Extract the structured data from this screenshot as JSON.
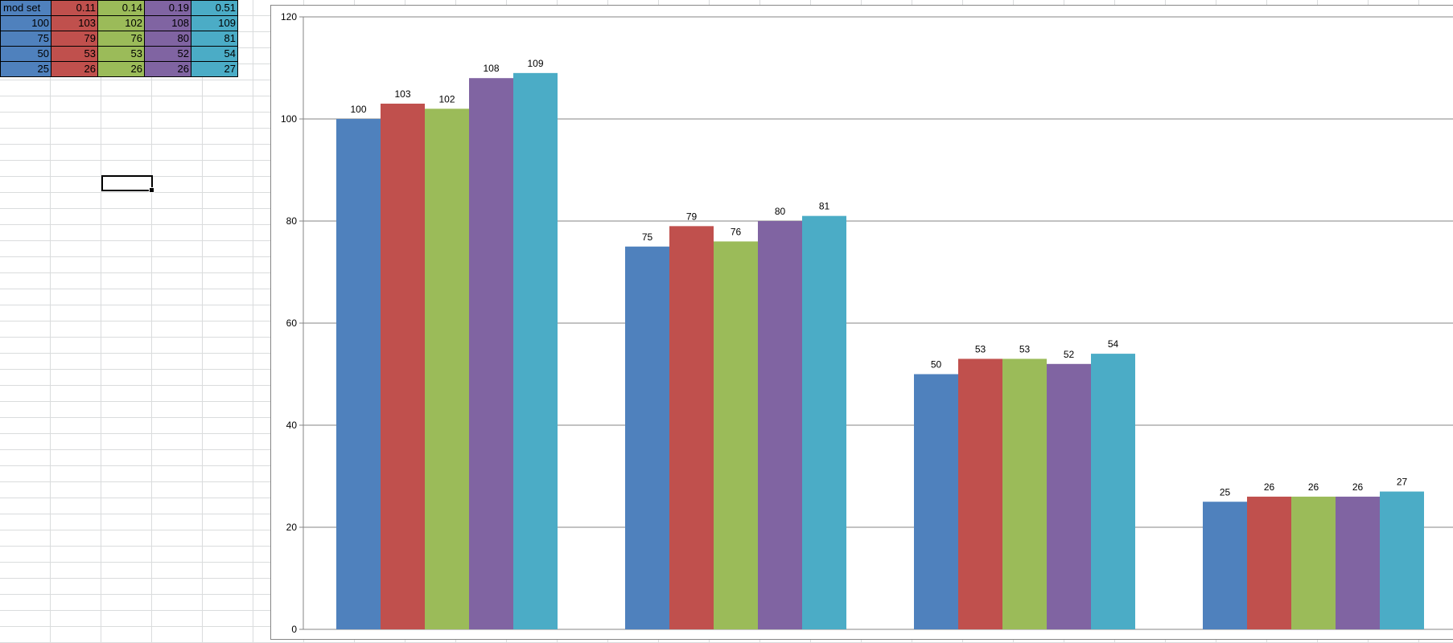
{
  "spreadsheet": {
    "table": {
      "header": [
        "mod set",
        "0.11",
        "0.14",
        "0.19",
        "0.51"
      ],
      "rows": [
        [
          "100",
          "103",
          "102",
          "108",
          "109"
        ],
        [
          "75",
          "79",
          "76",
          "80",
          "81"
        ],
        [
          "50",
          "53",
          "53",
          "52",
          "54"
        ],
        [
          "25",
          "26",
          "26",
          "26",
          "27"
        ]
      ]
    }
  },
  "colors": {
    "series": [
      "#4f81bd",
      "#c0504d",
      "#9bbb59",
      "#8064a2",
      "#4bacc6"
    ],
    "gridline": "#868686"
  },
  "chart_data": {
    "type": "bar",
    "title": "",
    "xlabel": "",
    "ylabel": "",
    "ylim": [
      0,
      120
    ],
    "yticks": [
      0,
      20,
      40,
      60,
      80,
      100,
      120
    ],
    "grid": true,
    "legend": "none",
    "categories": [
      "100",
      "75",
      "50",
      "25"
    ],
    "series": [
      {
        "values": [
          100,
          75,
          50,
          25
        ]
      },
      {
        "values": [
          103,
          79,
          53,
          26
        ]
      },
      {
        "values": [
          102,
          76,
          53,
          26
        ]
      },
      {
        "values": [
          108,
          80,
          52,
          26
        ]
      },
      {
        "values": [
          109,
          81,
          54,
          27
        ]
      }
    ]
  }
}
